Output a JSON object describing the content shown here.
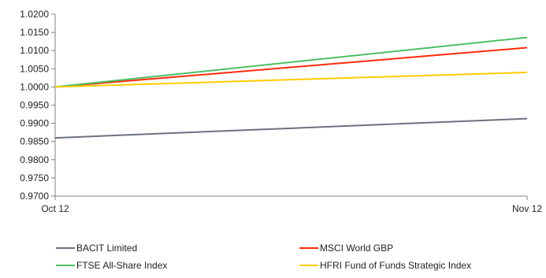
{
  "chart_data": {
    "type": "line",
    "title": "",
    "xlabel": "",
    "ylabel": "",
    "categories": [
      "Oct 12",
      "Nov 12"
    ],
    "ylim": [
      0.97,
      1.02
    ],
    "yticks": [
      "1.0200",
      "1.0150",
      "1.0100",
      "1.0050",
      "1.0000",
      "0.9950",
      "0.9900",
      "0.9850",
      "0.9800",
      "0.9750",
      "0.9700"
    ],
    "grid": false,
    "legend_position": "bottom",
    "series": [
      {
        "name": "BACIT Limited",
        "color": "#6b7280",
        "values": [
          0.986,
          0.9913
        ]
      },
      {
        "name": "MSCI World GBP",
        "color": "#ff2a0a",
        "values": [
          1.0,
          1.0108
        ]
      },
      {
        "name": "FTSE All-Share Index",
        "color": "#4cbf63",
        "values": [
          1.0,
          1.0136
        ]
      },
      {
        "name": "HFRI Fund of Funds Strategic Index",
        "color": "#ffcc00",
        "values": [
          1.0,
          1.004
        ]
      }
    ]
  }
}
